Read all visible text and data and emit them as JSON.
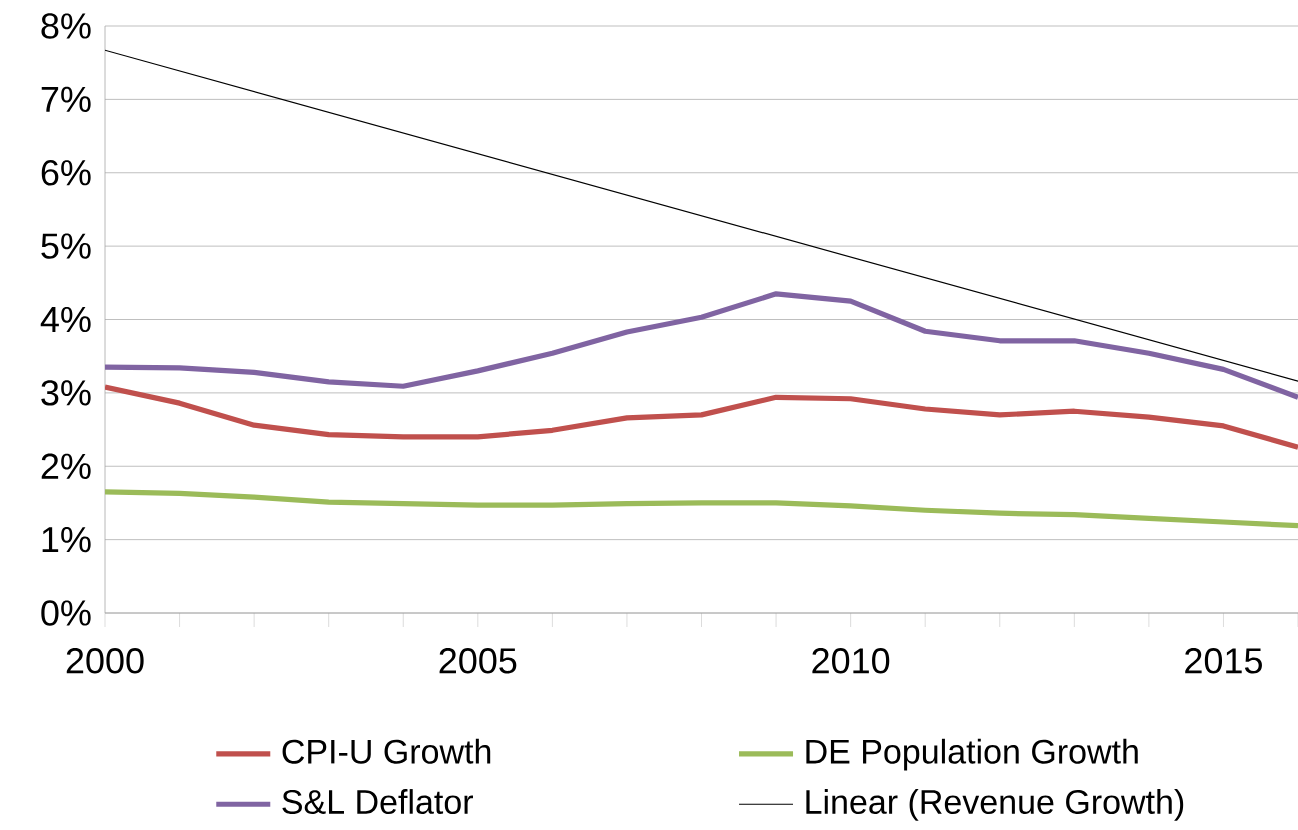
{
  "chart_data": {
    "type": "line",
    "x": [
      2000,
      2001,
      2002,
      2003,
      2004,
      2005,
      2006,
      2007,
      2008,
      2009,
      2010,
      2011,
      2012,
      2013,
      2014,
      2015,
      2016
    ],
    "series": [
      {
        "name": "CPI-U Growth",
        "color": "#c0504d",
        "values": [
          3.08,
          2.86,
          2.56,
          2.43,
          2.4,
          2.4,
          2.49,
          2.66,
          2.7,
          2.94,
          2.92,
          2.78,
          2.7,
          2.75,
          2.67,
          2.55,
          2.26
        ]
      },
      {
        "name": "DE Population Growth",
        "color": "#9bbb59",
        "values": [
          1.65,
          1.63,
          1.58,
          1.51,
          1.49,
          1.47,
          1.47,
          1.49,
          1.5,
          1.5,
          1.46,
          1.4,
          1.36,
          1.34,
          1.29,
          1.24,
          1.19
        ]
      },
      {
        "name": "S&L Deflator",
        "color": "#8064a2",
        "values": [
          3.35,
          3.34,
          3.28,
          3.15,
          3.09,
          3.3,
          3.54,
          3.83,
          4.03,
          4.35,
          4.25,
          3.84,
          3.71,
          3.71,
          3.54,
          3.32,
          2.94
        ]
      },
      {
        "name": "Linear (Revenue Growth)",
        "color": "#000000",
        "x": [
          2000,
          2016
        ],
        "values": [
          7.67,
          3.16
        ]
      }
    ],
    "xlim": [
      2000,
      2016
    ],
    "xticks": [
      2000,
      {
        "value": 2001,
        "label": null
      },
      {
        "value": 2002,
        "label": null
      },
      {
        "value": 2003,
        "label": null
      },
      {
        "value": 2004,
        "label": null
      },
      2005,
      {
        "value": 2006,
        "label": null
      },
      {
        "value": 2007,
        "label": null
      },
      {
        "value": 2008,
        "label": null
      },
      {
        "value": 2009,
        "label": null
      },
      2010,
      {
        "value": 2011,
        "label": null
      },
      {
        "value": 2012,
        "label": null
      },
      {
        "value": 2013,
        "label": null
      },
      {
        "value": 2014,
        "label": null
      },
      2015,
      {
        "value": 2016,
        "label": null
      }
    ],
    "ylim": [
      0,
      8
    ],
    "yticks": [
      {
        "value": 0,
        "label": "0%"
      },
      {
        "value": 1,
        "label": "1%"
      },
      {
        "value": 2,
        "label": "2%"
      },
      {
        "value": 3,
        "label": "3%"
      },
      {
        "value": 4,
        "label": "4%"
      },
      {
        "value": 5,
        "label": "5%"
      },
      {
        "value": 6,
        "label": "6%"
      },
      {
        "value": 7,
        "label": "7%"
      },
      {
        "value": 8,
        "label": "8%"
      }
    ],
    "grid": "y",
    "legend": "bottom",
    "marker": "none",
    "line_style": "solid"
  }
}
